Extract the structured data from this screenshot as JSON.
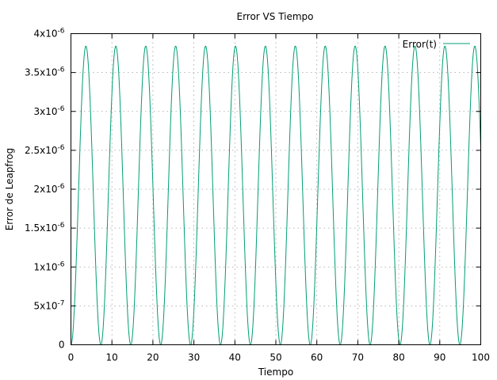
{
  "chart_data": {
    "type": "line",
    "title": "Error VS Tiempo",
    "xlabel": "Tiempo",
    "ylabel": "Error de Leapfrog",
    "xlim": [
      0,
      100
    ],
    "ylim": [
      0,
      4e-06
    ],
    "x_ticks": [
      0,
      10,
      20,
      30,
      40,
      50,
      60,
      70,
      80,
      90,
      100
    ],
    "x_tick_labels": [
      "0",
      "10",
      "20",
      "30",
      "40",
      "50",
      "60",
      "70",
      "80",
      "90",
      "100"
    ],
    "y_ticks": [
      0,
      5e-07,
      1e-06,
      1.5e-06,
      2e-06,
      2.5e-06,
      3e-06,
      3.5e-06,
      4e-06
    ],
    "y_tick_labels": [
      {
        "mantissa": "0",
        "exponent": ""
      },
      {
        "mantissa": "5x10",
        "exponent": "-7"
      },
      {
        "mantissa": "1x10",
        "exponent": "-6"
      },
      {
        "mantissa": "1.5x10",
        "exponent": "-6"
      },
      {
        "mantissa": "2x10",
        "exponent": "-6"
      },
      {
        "mantissa": "2.5x10",
        "exponent": "-6"
      },
      {
        "mantissa": "3x10",
        "exponent": "-6"
      },
      {
        "mantissa": "3.5x10",
        "exponent": "-6"
      },
      {
        "mantissa": "4x10",
        "exponent": "-6"
      }
    ],
    "grid": true,
    "legend_position": "top-right",
    "series": [
      {
        "name": "Error(t)",
        "color": "#009e73",
        "amplitude": 3.84e-06,
        "period": 7.3,
        "x_start": 0,
        "x_end": 100
      }
    ]
  }
}
